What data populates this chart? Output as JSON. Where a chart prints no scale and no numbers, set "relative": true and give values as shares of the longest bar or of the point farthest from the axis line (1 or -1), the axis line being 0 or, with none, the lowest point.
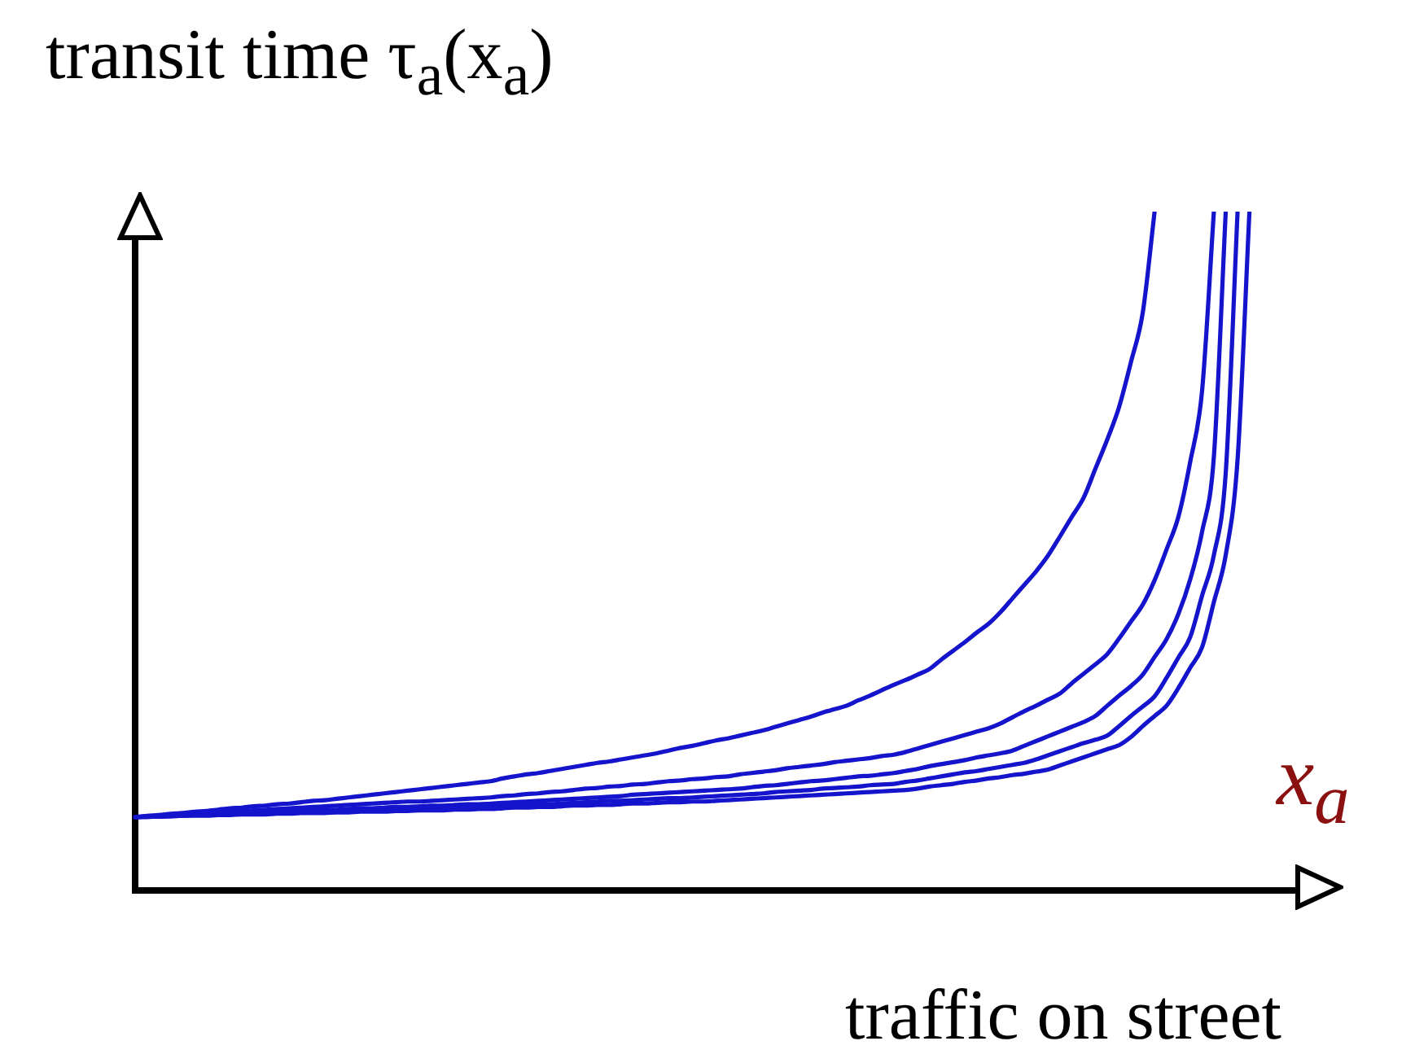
{
  "chart_data": {
    "type": "line",
    "relative": true,
    "ylabel": "transit time τ$_{a}$(x$_{a}$)",
    "xlabel": "traffic on street",
    "annotations": [
      "x$_{a}$"
    ],
    "grid": false,
    "legend": false,
    "marker": "none",
    "line_style": "solid",
    "categories": [
      null,
      null,
      null,
      null,
      null,
      null,
      null,
      null,
      null,
      null,
      null,
      null,
      null,
      null,
      null,
      null,
      null,
      null,
      null,
      null,
      null,
      null,
      null,
      null,
      null,
      null,
      null,
      null,
      null,
      null,
      null,
      null,
      null,
      null,
      null,
      null,
      null,
      null,
      null,
      null,
      null,
      null,
      null,
      null,
      null,
      null,
      null,
      null,
      null,
      null,
      null,
      null,
      null,
      null,
      null,
      null,
      null,
      null,
      null,
      null,
      null,
      null,
      null,
      null,
      null,
      null,
      null,
      null,
      null,
      null,
      null,
      null,
      null,
      null,
      null,
      null,
      null,
      null,
      null,
      null,
      null,
      null,
      null,
      null,
      null,
      null,
      null,
      null,
      null,
      null,
      null,
      null,
      null,
      null,
      null,
      null,
      null,
      null,
      null,
      null,
      null
    ],
    "series": [
      {
        "color": "#1414cc",
        "values": [
          0.108,
          0.11,
          0.111,
          0.113,
          0.114,
          0.116,
          0.117,
          0.119,
          0.121,
          0.122,
          0.124,
          0.125,
          0.127,
          0.128,
          0.13,
          0.132,
          0.133,
          0.135,
          0.137,
          0.139,
          0.141,
          0.143,
          0.145,
          0.147,
          0.149,
          0.151,
          0.153,
          0.155,
          0.157,
          0.159,
          0.161,
          0.165,
          0.168,
          0.171,
          0.173,
          0.176,
          0.179,
          0.182,
          0.185,
          0.188,
          0.19,
          0.193,
          0.196,
          0.199,
          0.202,
          0.206,
          0.21,
          0.213,
          0.217,
          0.221,
          0.224,
          0.228,
          0.232,
          0.236,
          0.241,
          0.246,
          0.251,
          0.256,
          0.262,
          0.267,
          0.272,
          0.28,
          0.287,
          0.295,
          0.303,
          0.31,
          0.318,
          0.326,
          0.34,
          0.353,
          0.366,
          0.38,
          0.393,
          0.41,
          0.43,
          0.45,
          0.47,
          0.493,
          0.521,
          0.55,
          0.578,
          0.621,
          0.664,
          0.712,
          0.778,
          0.851,
          1,
          null,
          null,
          null,
          null,
          null,
          null,
          null,
          null,
          null,
          null,
          null,
          null,
          null,
          null
        ]
      },
      {
        "color": "#1414cc",
        "values": [
          0.108,
          0.109,
          0.11,
          0.111,
          0.112,
          0.113,
          0.114,
          0.115,
          0.116,
          0.117,
          0.118,
          0.119,
          0.12,
          0.121,
          0.122,
          0.123,
          0.124,
          0.125,
          0.126,
          0.127,
          0.128,
          0.129,
          0.13,
          0.131,
          0.131,
          0.132,
          0.133,
          0.134,
          0.135,
          0.136,
          0.137,
          0.139,
          0.14,
          0.142,
          0.143,
          0.145,
          0.146,
          0.148,
          0.15,
          0.151,
          0.153,
          0.154,
          0.156,
          0.157,
          0.159,
          0.161,
          0.162,
          0.164,
          0.165,
          0.167,
          0.168,
          0.171,
          0.173,
          0.175,
          0.177,
          0.18,
          0.182,
          0.184,
          0.186,
          0.189,
          0.191,
          0.193,
          0.195,
          0.198,
          0.2,
          0.204,
          0.209,
          0.214,
          0.219,
          0.224,
          0.229,
          0.234,
          0.239,
          0.246,
          0.255,
          0.264,
          0.272,
          0.281,
          0.29,
          0.305,
          0.319,
          0.333,
          0.348,
          0.371,
          0.396,
          0.421,
          0.457,
          0.502,
          0.55,
          0.631,
          0.735,
          1,
          null,
          null,
          null,
          null,
          null,
          null,
          null,
          null,
          null
        ]
      },
      {
        "color": "#1414cc",
        "values": [
          0.108,
          0.109,
          0.109,
          0.11,
          0.111,
          0.111,
          0.112,
          0.113,
          0.113,
          0.114,
          0.115,
          0.115,
          0.116,
          0.117,
          0.117,
          0.118,
          0.119,
          0.119,
          0.12,
          0.121,
          0.121,
          0.122,
          0.123,
          0.123,
          0.124,
          0.125,
          0.125,
          0.126,
          0.127,
          0.127,
          0.128,
          0.129,
          0.13,
          0.131,
          0.132,
          0.133,
          0.134,
          0.135,
          0.136,
          0.137,
          0.138,
          0.139,
          0.141,
          0.142,
          0.143,
          0.144,
          0.145,
          0.146,
          0.147,
          0.148,
          0.149,
          0.15,
          0.152,
          0.154,
          0.155,
          0.157,
          0.159,
          0.161,
          0.162,
          0.164,
          0.166,
          0.168,
          0.169,
          0.171,
          0.173,
          0.176,
          0.179,
          0.183,
          0.186,
          0.189,
          0.192,
          0.196,
          0.199,
          0.202,
          0.206,
          0.213,
          0.22,
          0.227,
          0.234,
          0.241,
          0.248,
          0.257,
          0.272,
          0.287,
          0.301,
          0.318,
          0.344,
          0.37,
          0.407,
          0.458,
          0.528,
          0.639,
          1,
          null,
          null,
          null,
          null,
          null,
          null,
          null,
          null
        ]
      },
      {
        "color": "#1414cc",
        "values": [
          0.108,
          0.109,
          0.109,
          0.11,
          0.11,
          0.111,
          0.111,
          0.112,
          0.112,
          0.113,
          0.113,
          0.114,
          0.114,
          0.115,
          0.115,
          0.116,
          0.116,
          0.117,
          0.117,
          0.118,
          0.118,
          0.119,
          0.119,
          0.12,
          0.12,
          0.121,
          0.121,
          0.122,
          0.122,
          0.123,
          0.123,
          0.124,
          0.125,
          0.126,
          0.127,
          0.127,
          0.128,
          0.129,
          0.13,
          0.131,
          0.132,
          0.132,
          0.133,
          0.134,
          0.135,
          0.136,
          0.136,
          0.137,
          0.138,
          0.139,
          0.14,
          0.141,
          0.142,
          0.143,
          0.145,
          0.146,
          0.147,
          0.148,
          0.15,
          0.151,
          0.152,
          0.153,
          0.155,
          0.156,
          0.157,
          0.16,
          0.162,
          0.165,
          0.168,
          0.171,
          0.174,
          0.176,
          0.179,
          0.182,
          0.185,
          0.188,
          0.193,
          0.199,
          0.205,
          0.211,
          0.217,
          0.222,
          0.228,
          0.242,
          0.257,
          0.271,
          0.286,
          0.313,
          0.343,
          0.373,
          0.434,
          0.494,
          0.615,
          1,
          null,
          null,
          null,
          null,
          null,
          null,
          null
        ]
      },
      {
        "color": "#1414cc",
        "values": [
          0.108,
          0.108,
          0.109,
          0.109,
          0.11,
          0.11,
          0.11,
          0.111,
          0.111,
          0.112,
          0.112,
          0.112,
          0.113,
          0.113,
          0.114,
          0.114,
          0.114,
          0.115,
          0.115,
          0.116,
          0.116,
          0.116,
          0.117,
          0.117,
          0.118,
          0.118,
          0.118,
          0.119,
          0.119,
          0.12,
          0.12,
          0.121,
          0.122,
          0.122,
          0.123,
          0.123,
          0.124,
          0.125,
          0.125,
          0.126,
          0.126,
          0.127,
          0.128,
          0.128,
          0.129,
          0.13,
          0.13,
          0.131,
          0.131,
          0.132,
          0.133,
          0.134,
          0.135,
          0.136,
          0.137,
          0.138,
          0.139,
          0.14,
          0.141,
          0.142,
          0.143,
          0.144,
          0.145,
          0.146,
          0.147,
          0.148,
          0.15,
          0.153,
          0.155,
          0.157,
          0.16,
          0.162,
          0.165,
          0.167,
          0.17,
          0.172,
          0.175,
          0.178,
          0.184,
          0.19,
          0.196,
          0.202,
          0.208,
          0.214,
          0.226,
          0.242,
          0.257,
          0.272,
          0.298,
          0.328,
          0.358,
          0.425,
          0.494,
          0.635,
          1,
          null,
          null,
          null,
          null,
          null,
          null
        ]
      }
    ]
  }
}
